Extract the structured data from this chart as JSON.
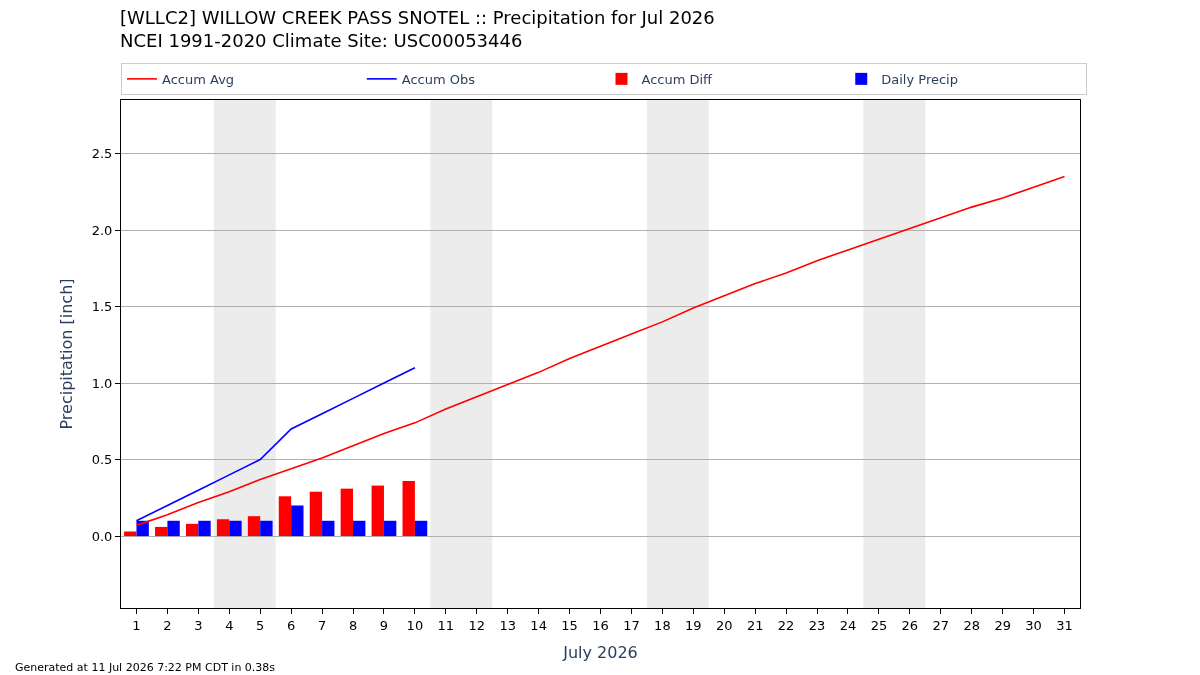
{
  "chart_data": {
    "type": "line",
    "title": "[WLLC2] WILLOW CREEK PASS SNOTEL :: Precipitation for Jul 2026",
    "subtitle": "NCEI 1991-2020 Climate Site: USC00053446",
    "xlabel": "July 2026",
    "ylabel": "Precipitation [inch]",
    "xlim": [
      0.5,
      31.5
    ],
    "xticks": [
      1,
      2,
      3,
      4,
      5,
      6,
      7,
      8,
      9,
      10,
      11,
      12,
      13,
      14,
      15,
      16,
      17,
      18,
      19,
      20,
      21,
      22,
      23,
      24,
      25,
      26,
      27,
      28,
      29,
      30,
      31
    ],
    "ylim": [
      -0.47,
      2.85
    ],
    "yticks": [
      {
        "value": 0,
        "label": "0.0"
      },
      {
        "value": 0.5,
        "label": "0.5"
      },
      {
        "value": 1,
        "label": "1.0"
      },
      {
        "value": 1.5,
        "label": "1.5"
      },
      {
        "value": 2,
        "label": "2.0"
      },
      {
        "value": 2.5,
        "label": "2.5"
      }
    ],
    "grid": "y",
    "legend": "top",
    "marker": "none",
    "series": [
      {
        "name": "Accum Avg",
        "color": "#ff0000",
        "x": [
          1,
          2,
          3,
          4,
          5,
          6,
          7,
          8,
          9,
          10,
          11,
          12,
          13,
          14,
          15,
          16,
          17,
          18,
          19,
          20,
          21,
          22,
          23,
          24,
          25,
          26,
          27,
          28,
          29,
          30,
          31
        ],
        "values": [
          0.07,
          0.14,
          0.22,
          0.29,
          0.37,
          0.44,
          0.51,
          0.59,
          0.67,
          0.74,
          0.83,
          0.91,
          0.99,
          1.07,
          1.16,
          1.24,
          1.32,
          1.4,
          1.49,
          1.57,
          1.65,
          1.72,
          1.8,
          1.87,
          1.94,
          2.01,
          2.08,
          2.15,
          2.21,
          2.28,
          2.35
        ]
      },
      {
        "name": "Accum Obs",
        "color": "#0000ff",
        "x": [
          1,
          2,
          3,
          4,
          5,
          6,
          7,
          8,
          9,
          10
        ],
        "values": [
          0.1,
          0.2,
          0.3,
          0.4,
          0.5,
          0.7,
          0.8,
          0.9,
          1.0,
          1.1
        ]
      },
      {
        "name": "Accum Diff",
        "type": "bar",
        "color": "#ff0000",
        "x": [
          1,
          2,
          3,
          4,
          5,
          6,
          7,
          8,
          9,
          10
        ],
        "values": [
          0.03,
          0.06,
          0.08,
          0.11,
          0.13,
          0.26,
          0.29,
          0.31,
          0.33,
          0.36
        ]
      },
      {
        "name": "Daily Precip",
        "type": "bar",
        "color": "#0000ff",
        "x": [
          1,
          2,
          3,
          4,
          5,
          6,
          7,
          8,
          9,
          10
        ],
        "values": [
          0.1,
          0.1,
          0.1,
          0.1,
          0.1,
          0.2,
          0.1,
          0.1,
          0.1,
          0.1
        ]
      }
    ],
    "bands": [
      {
        "axis": "x",
        "from": 3.5,
        "to": 5.5,
        "color": "#ececec"
      },
      {
        "axis": "x",
        "from": 10.5,
        "to": 12.5,
        "color": "#ececec"
      },
      {
        "axis": "x",
        "from": 17.5,
        "to": 19.5,
        "color": "#ececec"
      },
      {
        "axis": "x",
        "from": 24.5,
        "to": 26.5,
        "color": "#ececec"
      }
    ],
    "annotations": [
      "Generated at 11 Jul 2026 7:22 PM CDT in 0.38s"
    ]
  }
}
